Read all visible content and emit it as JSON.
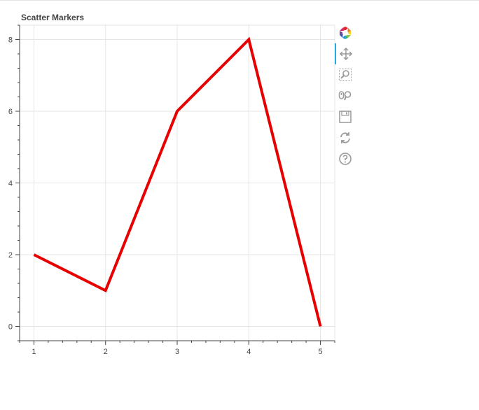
{
  "chart_data": {
    "type": "line",
    "title": "Scatter Markers",
    "x": [
      1,
      2,
      3,
      4,
      5
    ],
    "series": [
      {
        "values": [
          2,
          1,
          6,
          8,
          0
        ],
        "color": "#e80000"
      }
    ],
    "xlim": [
      0.8,
      5.2
    ],
    "ylim": [
      -0.4,
      8.4
    ],
    "xticks": [
      1,
      2,
      3,
      4,
      5
    ],
    "yticks": [
      0,
      2,
      4,
      6,
      8
    ],
    "grid": true,
    "xlabel": "",
    "ylabel": ""
  },
  "toolbar": {
    "tools": [
      {
        "name": "bokeh-logo-icon",
        "interactable": true,
        "active": false
      },
      {
        "name": "pan-icon",
        "interactable": true,
        "active": true
      },
      {
        "name": "box-zoom-icon",
        "interactable": true,
        "active": false
      },
      {
        "name": "wheel-zoom-icon",
        "interactable": true,
        "active": false
      },
      {
        "name": "save-icon",
        "interactable": true,
        "active": false
      },
      {
        "name": "reset-icon",
        "interactable": true,
        "active": false
      },
      {
        "name": "help-icon",
        "interactable": true,
        "active": false
      }
    ]
  },
  "colors": {
    "grid": "#e5e5e5",
    "axis": "#444444",
    "tick_label": "#444444",
    "title": "#444444",
    "icon": "#999999",
    "active_tool": "#26aae1"
  }
}
